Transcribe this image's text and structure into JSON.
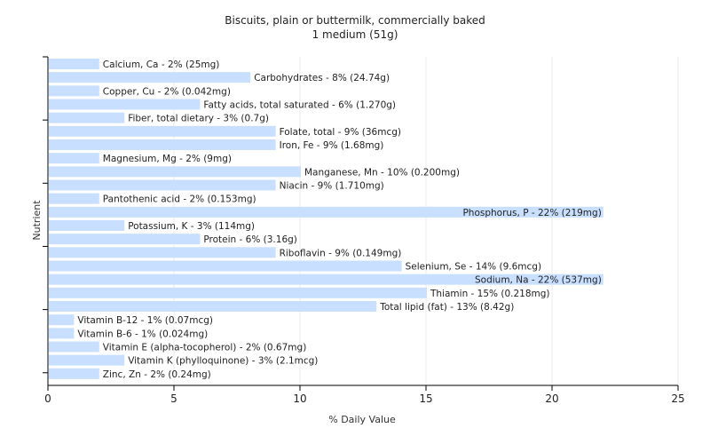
{
  "chart_data": {
    "type": "bar",
    "orientation": "horizontal",
    "title": "Biscuits, plain or buttermilk, commercially baked",
    "subtitle": "1 medium (51g)",
    "xlabel": "% Daily Value",
    "ylabel": "Nutrient",
    "xlim": [
      0,
      25
    ],
    "xticks": [
      0,
      5,
      10,
      15,
      20,
      25
    ],
    "grid": true,
    "bar_color": "#c8dfff",
    "categories": [
      "Calcium, Ca - 2% (25mg)",
      "Carbohydrates - 8% (24.74g)",
      "Copper, Cu - 2% (0.042mg)",
      "Fatty acids, total saturated - 6% (1.270g)",
      "Fiber, total dietary - 3% (0.7g)",
      "Folate, total - 9% (36mcg)",
      "Iron, Fe - 9% (1.68mg)",
      "Magnesium, Mg - 2% (9mg)",
      "Manganese, Mn - 10% (0.200mg)",
      "Niacin - 9% (1.710mg)",
      "Pantothenic acid - 2% (0.153mg)",
      "Phosphorus, P - 22% (219mg)",
      "Potassium, K - 3% (114mg)",
      "Protein - 6% (3.16g)",
      "Riboflavin - 9% (0.149mg)",
      "Selenium, Se - 14% (9.6mcg)",
      "Sodium, Na - 22% (537mg)",
      "Thiamin - 15% (0.218mg)",
      "Total lipid (fat) - 13% (8.42g)",
      "Vitamin B-12 - 1% (0.07mcg)",
      "Vitamin B-6 - 1% (0.024mg)",
      "Vitamin E (alpha-tocopherol) - 2% (0.67mg)",
      "Vitamin K (phylloquinone) - 3% (2.1mcg)",
      "Zinc, Zn - 2% (0.24mg)"
    ],
    "values": [
      2,
      8,
      2,
      6,
      3,
      9,
      9,
      2,
      10,
      9,
      2,
      22,
      3,
      6,
      9,
      14,
      22,
      15,
      13,
      1,
      1,
      2,
      3,
      2
    ]
  }
}
